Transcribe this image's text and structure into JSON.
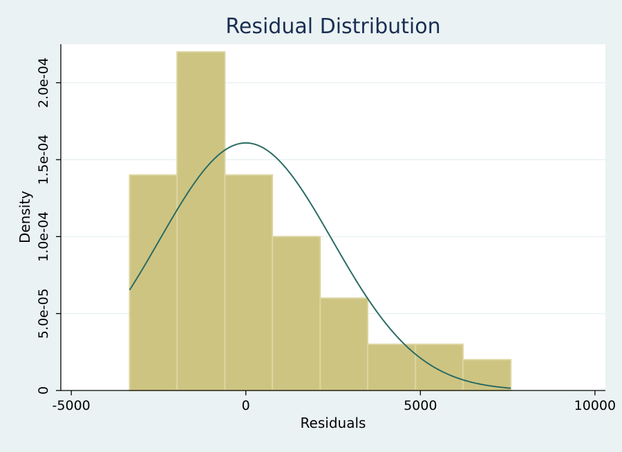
{
  "chart_data": {
    "type": "bar",
    "title": "Residual Distribution",
    "xlabel": "Residuals",
    "ylabel": "Density",
    "xlim": [
      -5300,
      10300
    ],
    "ylim": [
      0,
      0.000225
    ],
    "x_ticks": [
      {
        "value": -5000,
        "label": "-5000"
      },
      {
        "value": 0,
        "label": "0"
      },
      {
        "value": 5000,
        "label": "5000"
      },
      {
        "value": 10000,
        "label": "10000"
      }
    ],
    "y_ticks": [
      {
        "value": 0,
        "label": "0"
      },
      {
        "value": 5e-05,
        "label": "5.0e-05"
      },
      {
        "value": 0.0001,
        "label": "1.0e-04"
      },
      {
        "value": 0.00015,
        "label": "1.5e-04"
      },
      {
        "value": 0.0002,
        "label": "2.0e-04"
      }
    ],
    "grid": true,
    "bins": [
      {
        "x0": -3330,
        "x1": -1970,
        "density": 0.00014
      },
      {
        "x0": -1970,
        "x1": -600,
        "density": 0.00022
      },
      {
        "x0": -600,
        "x1": 760,
        "density": 0.00014
      },
      {
        "x0": 760,
        "x1": 2130,
        "density": 0.0001
      },
      {
        "x0": 2130,
        "x1": 3490,
        "density": 6e-05
      },
      {
        "x0": 3490,
        "x1": 4860,
        "density": 3e-05
      },
      {
        "x0": 4860,
        "x1": 6220,
        "density": 3e-05
      },
      {
        "x0": 6220,
        "x1": 7590,
        "density": 2e-05
      }
    ],
    "normal_curve": {
      "mean": 0,
      "sd": 2480,
      "x_start": -3330,
      "x_end": 7590
    },
    "colors": {
      "bars": "#cdc482",
      "bar_edges": "#dcd59f",
      "curve": "#2a6b62",
      "title": "#1a2e52",
      "background": "#eaf2f3",
      "plot_area": "#ffffff"
    }
  }
}
